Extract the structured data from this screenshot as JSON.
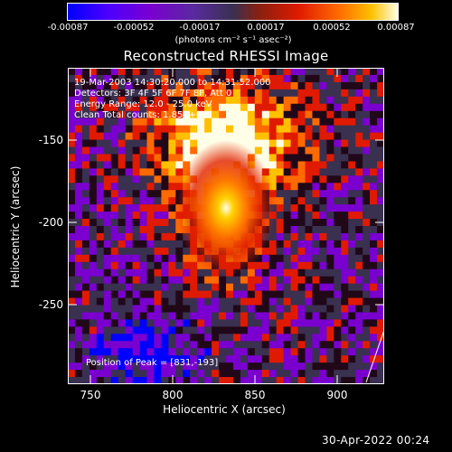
{
  "colorbar": {
    "ticks": [
      "-0.00087",
      "-0.00052",
      "-0.00017",
      "0.00017",
      "0.00052",
      "0.00087"
    ],
    "units_text": "(photons cm⁻² s⁻¹ asec⁻²)"
  },
  "chart_data": {
    "type": "heatmap",
    "title": "Reconstructed RHESSI Image",
    "xlabel": "Heliocentric X (arcsec)",
    "ylabel": "Heliocentric Y (arcsec)",
    "xlim": [
      736,
      928
    ],
    "ylim": [
      -298,
      -106
    ],
    "x_ticks": [
      "750",
      "800",
      "850",
      "900"
    ],
    "y_ticks": [
      "-150",
      "-200",
      "-250"
    ],
    "clim": [
      -0.00087,
      0.00087
    ],
    "peak_position": [
      831,
      -193
    ],
    "colormap": [
      "#0000ff",
      "#7a00d0",
      "#3a3050",
      "#e01a00",
      "#ff6a00",
      "#ffc000",
      "#ffffe8"
    ],
    "annotations": [
      "19-Mar-2003 14:30:20.000 to 14:31:52.000",
      "Detectors: 3F 4F 5F 6F 7F 8F, Att 0",
      "Energy Range: 12.0 - 25.0 keV",
      "Clean     Total counts: 1.85E+03"
    ],
    "peak_label": "Position of Peak = [831,-193]"
  },
  "footer": {
    "date": "30-Apr-2022 00:24"
  }
}
